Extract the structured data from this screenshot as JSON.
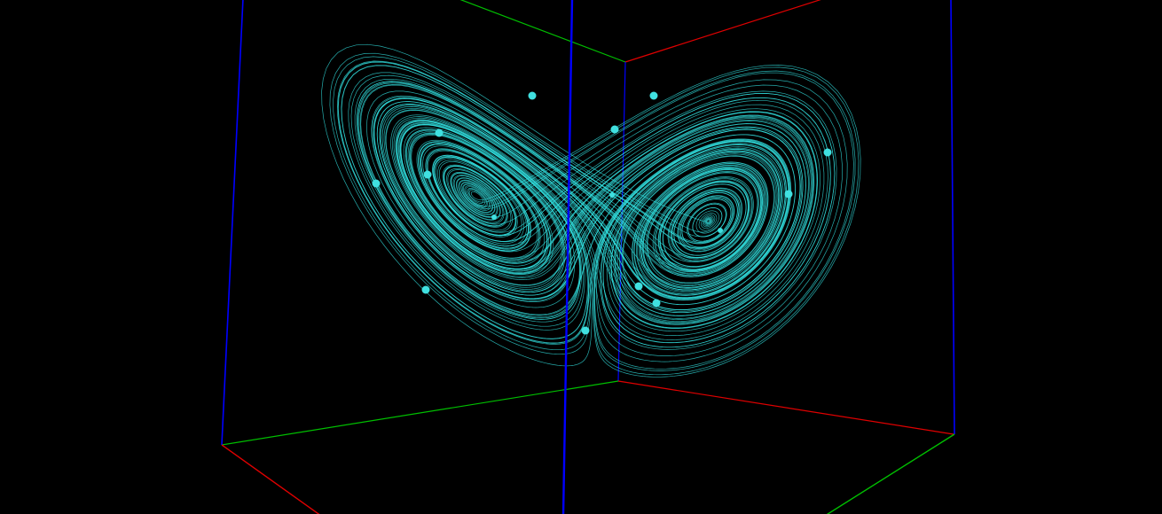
{
  "scene": {
    "description_visible_text": "",
    "background_color": "#000000",
    "attractor_color": "#33e6e6",
    "particle_color": "#40e0e0",
    "axis_colors": {
      "x_axis": "#e00000",
      "y_axis": "#00c000",
      "z_axis": "#0000ff"
    },
    "particle_count": 15,
    "wing_count": 2
  }
}
